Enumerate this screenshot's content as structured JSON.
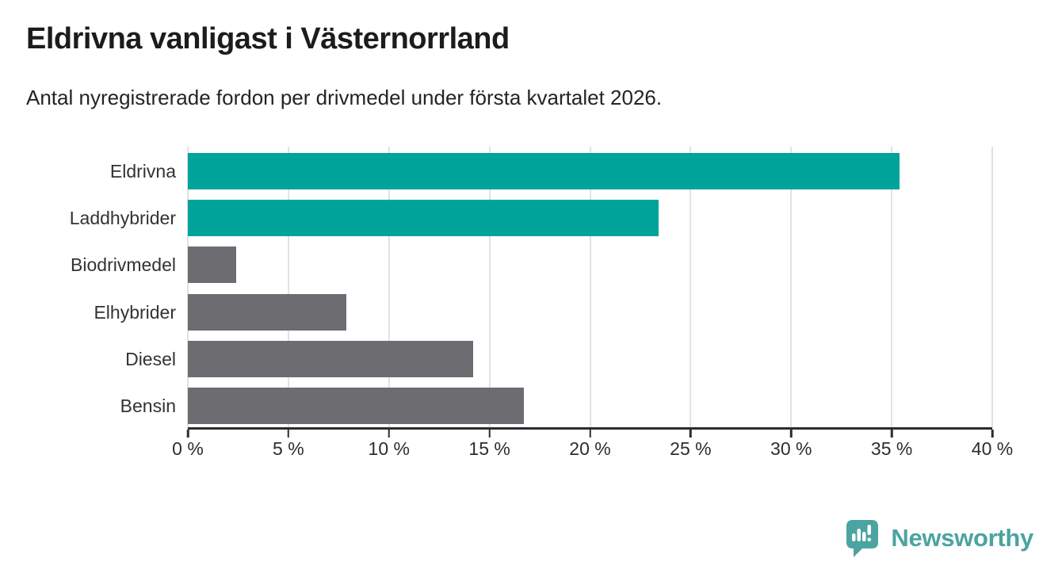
{
  "header": {
    "title": "Eldrivna vanligast i Västernorrland",
    "subtitle": "Antal nyregistrerade fordon per drivmedel under första kvartalet 2026."
  },
  "colors": {
    "teal": "#00a39a",
    "gray": "#6c6c71",
    "grid": "#e2e2e2",
    "axis": "#2d2d2d",
    "text": "#333333",
    "logo_teal": "#4ba4a1"
  },
  "chart_data": {
    "type": "bar",
    "orientation": "horizontal",
    "title": "Eldrivna vanligast i Västernorrland",
    "subtitle": "Antal nyregistrerade fordon per drivmedel under första kvartalet 2026.",
    "categories": [
      "Eldrivna",
      "Laddhybrider",
      "Biodrivmedel",
      "Elhybrider",
      "Diesel",
      "Bensin"
    ],
    "values": [
      35.4,
      23.4,
      2.4,
      7.9,
      14.2,
      16.7
    ],
    "bar_colors": [
      "#00a39a",
      "#00a39a",
      "#6c6c71",
      "#6c6c71",
      "#6c6c71",
      "#6c6c71"
    ],
    "unit": "%",
    "xlabel": "",
    "ylabel": "",
    "xlim": [
      0,
      40
    ],
    "xticks": [
      0,
      5,
      10,
      15,
      20,
      25,
      30,
      35,
      40
    ],
    "xtick_suffix": " %",
    "grid": true,
    "legend": false
  },
  "footer": {
    "brand": "Newsworthy",
    "logo_icon": "bar-chart-speech-bubble-icon"
  }
}
